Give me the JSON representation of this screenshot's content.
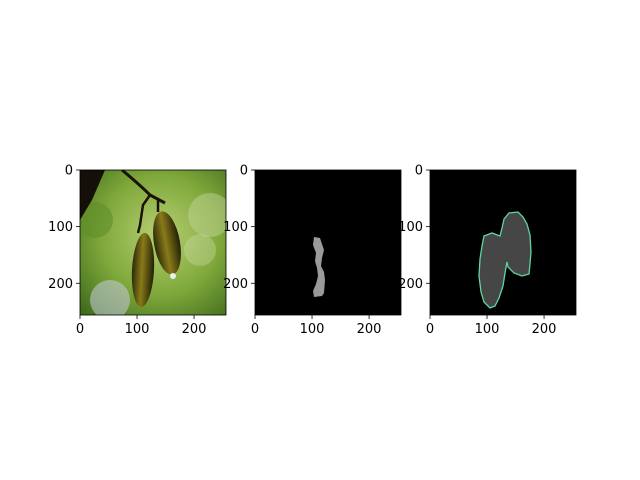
{
  "figure": {
    "background": "#ffffff"
  },
  "chart_data": [
    {
      "type": "image",
      "content": "photo of two hanging seed pods on a branch against a blurred green background",
      "xlim": [
        0,
        256
      ],
      "ylim": [
        256,
        0
      ],
      "xticks": [
        0,
        100,
        200
      ],
      "yticks": [
        0,
        100,
        200
      ],
      "xtick_labels": [
        "0",
        "100",
        "200"
      ],
      "ytick_labels": [
        "0",
        "100",
        "200"
      ],
      "colors": {
        "background_green": "#7ea83a",
        "pod": "#4a4a10",
        "branch": "#1a1208"
      }
    },
    {
      "type": "image",
      "content": "segmentation mask: small gray region on black",
      "xlim": [
        0,
        256
      ],
      "ylim": [
        256,
        0
      ],
      "xticks": [
        0,
        100,
        200
      ],
      "yticks": [
        0,
        100,
        200
      ],
      "xtick_labels": [
        "0",
        "100",
        "200"
      ],
      "ytick_labels": [
        "0",
        "100",
        "200"
      ],
      "colors": {
        "background": "#000000",
        "mask": "#9a9a9a"
      }
    },
    {
      "type": "image",
      "content": "segmentation mask: two merged pod shapes in dark gray with green/cyan outline on black",
      "xlim": [
        0,
        256
      ],
      "ylim": [
        256,
        0
      ],
      "xticks": [
        0,
        100,
        200
      ],
      "yticks": [
        0,
        100,
        200
      ],
      "xtick_labels": [
        "0",
        "100",
        "200"
      ],
      "ytick_labels": [
        "0",
        "100",
        "200"
      ],
      "colors": {
        "background": "#000000",
        "mask": "#464646",
        "outline": "#5fd6a0"
      }
    }
  ]
}
